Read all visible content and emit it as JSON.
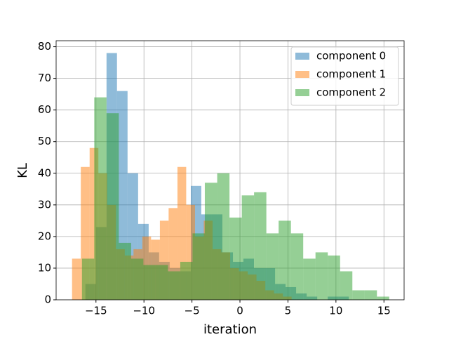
{
  "chart_data": {
    "type": "histogram",
    "xlabel": "iteration",
    "ylabel": "KL",
    "xlim": [
      -19.15,
      17.1
    ],
    "ylim": [
      0,
      81.9
    ],
    "xticks": [
      {
        "value": -15,
        "label": "−15"
      },
      {
        "value": -10,
        "label": "−10"
      },
      {
        "value": -5,
        "label": "−5"
      },
      0,
      5,
      10,
      15
    ],
    "yticks": [
      0,
      10,
      20,
      30,
      40,
      50,
      60,
      70,
      80
    ],
    "grid": true,
    "legend": "upper right",
    "alpha": 0.5,
    "series": [
      {
        "name": "component 0",
        "color": "#1f77b4",
        "bins": [
          -16.1,
          -15.0,
          -13.9,
          -12.81,
          -11.71,
          -10.61,
          -9.51,
          -8.42,
          -7.32,
          -6.22,
          -5.12,
          -4.03,
          -2.93,
          -1.83,
          -0.73,
          0.36,
          1.46,
          2.56,
          3.66,
          4.75,
          5.85,
          6.95,
          8.05,
          9.14,
          10.24,
          11.34
        ],
        "values": [
          5,
          23,
          78,
          66,
          40,
          24,
          15,
          12,
          10,
          9,
          36,
          27,
          27,
          15,
          12,
          13,
          10,
          10,
          5,
          4,
          2,
          1,
          0,
          1,
          1
        ]
      },
      {
        "name": "component 1",
        "color": "#ff7f0e",
        "bins": [
          -17.49,
          -16.58,
          -15.66,
          -14.75,
          -13.83,
          -12.92,
          -12.0,
          -11.09,
          -10.17,
          -9.26,
          -8.34,
          -7.43,
          -6.51,
          -5.6,
          -4.68,
          -3.77,
          -2.85,
          -1.94,
          -1.02,
          -0.11,
          0.81,
          1.72,
          2.64,
          3.55,
          4.47,
          5.38
        ],
        "values": [
          13,
          42,
          48,
          40,
          30,
          16,
          14,
          16,
          20,
          19,
          25,
          29,
          42,
          30,
          20,
          25,
          16,
          15,
          10,
          9,
          8,
          6,
          3,
          2,
          1
        ]
      },
      {
        "name": "component 2",
        "color": "#2ca02c",
        "bins": [
          -16.46,
          -15.18,
          -13.9,
          -12.62,
          -11.34,
          -10.06,
          -8.78,
          -7.5,
          -6.22,
          -4.94,
          -3.66,
          -2.37,
          -1.09,
          0.19,
          1.47,
          2.75,
          4.03,
          5.31,
          6.59,
          7.87,
          9.15,
          10.43,
          11.71,
          12.99,
          14.27,
          15.55
        ],
        "values": [
          13,
          64,
          59,
          18,
          13,
          11,
          11,
          9,
          12,
          21,
          37,
          40,
          26,
          33,
          34,
          21,
          25,
          21,
          13,
          15,
          14,
          9,
          3,
          3,
          1
        ]
      }
    ]
  }
}
